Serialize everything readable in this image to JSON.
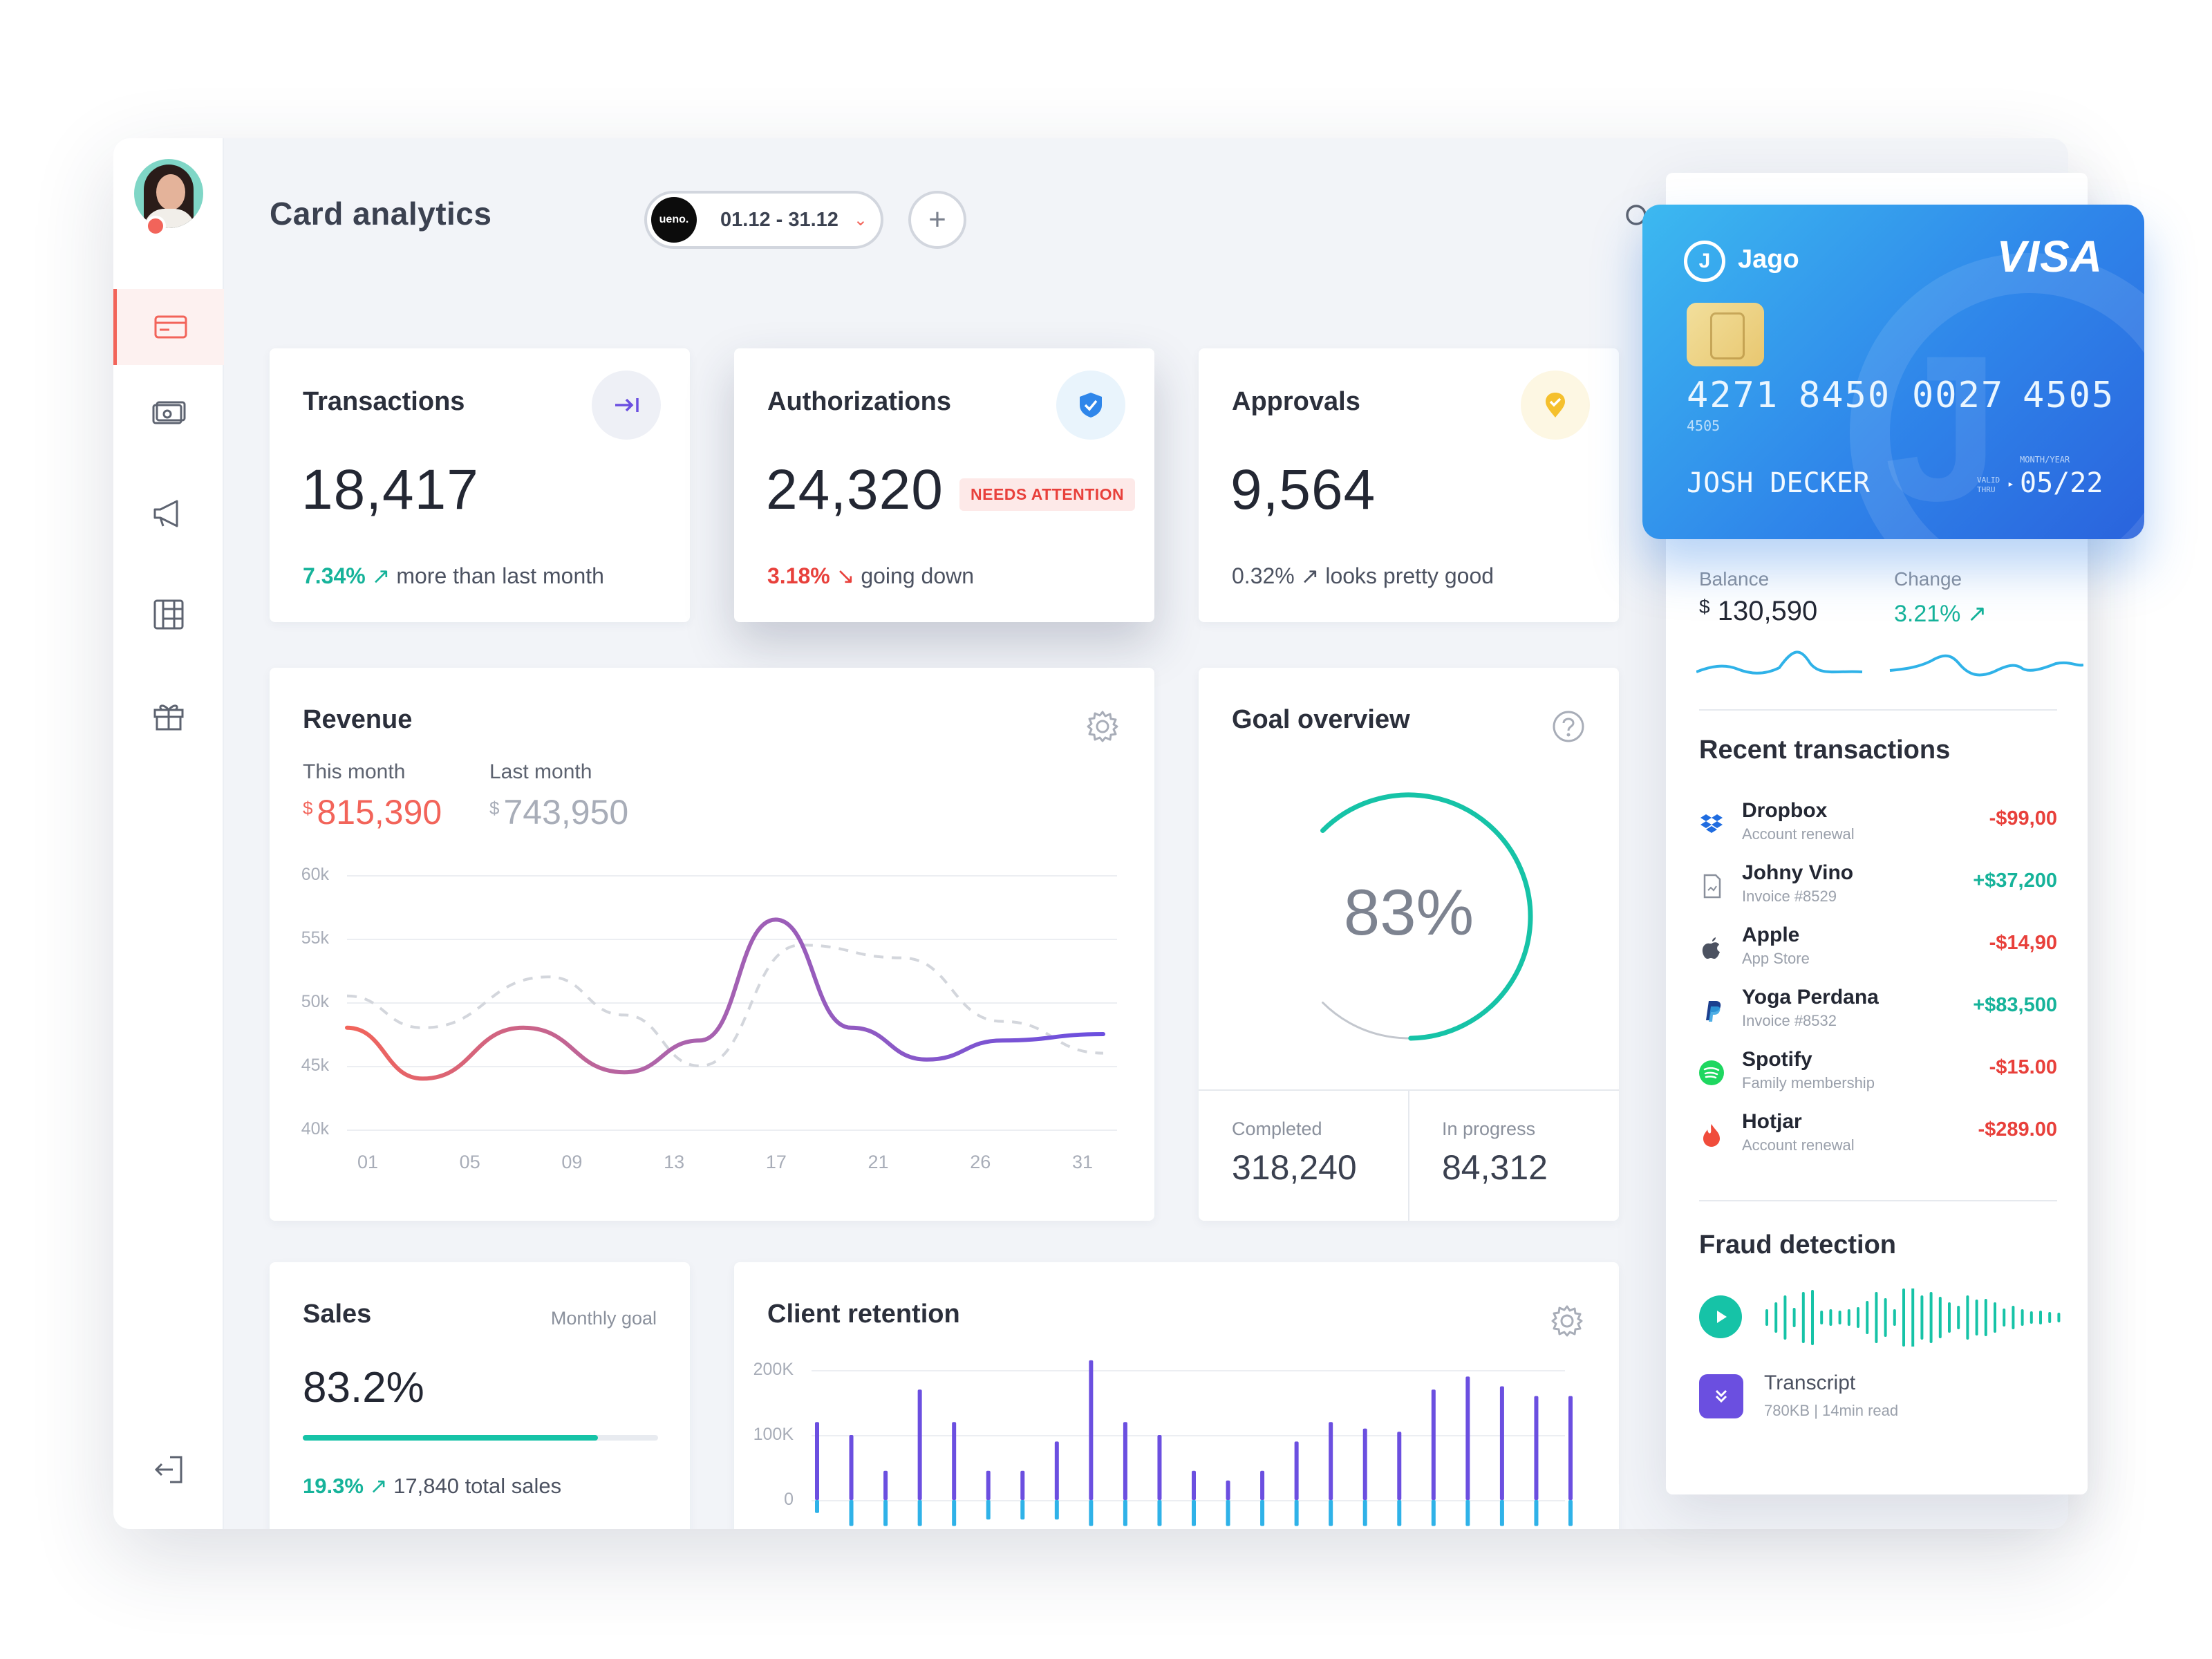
{
  "header": {
    "title": "Card analytics",
    "brand_logo_text": "ueno.",
    "date_range": "01.12 - 31.12",
    "add_label": "+"
  },
  "sidebar": {
    "items": [
      {
        "name": "cards",
        "icon": "credit-card-icon",
        "active": true
      },
      {
        "name": "payments",
        "icon": "cash-icon",
        "active": false
      },
      {
        "name": "campaigns",
        "icon": "megaphone-icon",
        "active": false
      },
      {
        "name": "reports",
        "icon": "table-icon",
        "active": false
      },
      {
        "name": "rewards",
        "icon": "gift-icon",
        "active": false
      }
    ],
    "logout_icon": "logout-icon"
  },
  "kpis": [
    {
      "title": "Transactions",
      "value": "18,417",
      "pct": "7.34%",
      "arrow": "↗",
      "note": "more than last month",
      "pct_color": "#16b39a",
      "icon": "arrow-to-line-icon"
    },
    {
      "title": "Authorizations",
      "value": "24,320",
      "badge": "NEEDS ATTENTION",
      "pct": "3.18%",
      "arrow": "↘",
      "note": "going down",
      "pct_color": "#e8403b",
      "icon": "shield-check-icon"
    },
    {
      "title": "Approvals",
      "value": "9,564",
      "pct": "0.32%",
      "arrow": "↗",
      "note": "looks pretty good",
      "pct_color": "#4c5261",
      "icon": "location-check-icon"
    }
  ],
  "revenue": {
    "title": "Revenue",
    "this_month_label": "This month",
    "this_month_currency": "$",
    "this_month_value": "815,390",
    "last_month_label": "Last month",
    "last_month_currency": "$",
    "last_month_value": "743,950"
  },
  "chart_data": [
    {
      "type": "line",
      "y_ticks": [
        "60k",
        "55k",
        "50k",
        "45k",
        "40k"
      ],
      "ylim": [
        40000,
        60000
      ],
      "x_ticks": [
        "01",
        "05",
        "09",
        "13",
        "17",
        "21",
        "26",
        "31"
      ],
      "series": [
        {
          "values": [
            [
              1,
              48000
            ],
            [
              4,
              44000
            ],
            [
              8,
              48000
            ],
            [
              12,
              44500
            ],
            [
              15,
              47000
            ],
            [
              18,
              56500
            ],
            [
              21,
              48000
            ],
            [
              24,
              45500
            ],
            [
              27,
              47000
            ],
            [
              31,
              47500
            ]
          ]
        },
        {
          "values": [
            [
              1,
              50500
            ],
            [
              4,
              48000
            ],
            [
              9,
              52000
            ],
            [
              12,
              49000
            ],
            [
              15,
              45000
            ],
            [
              19,
              54500
            ],
            [
              23,
              53500
            ],
            [
              27,
              48500
            ],
            [
              31,
              46000
            ]
          ]
        }
      ]
    },
    {
      "type": "bar",
      "title": "Client retention",
      "y_ticks": [
        "200K",
        "100K",
        "0"
      ],
      "ylim": [
        0,
        200000
      ],
      "series": [
        {
          "values": [
            120000,
            100000,
            45000,
            170000,
            120000,
            45000,
            45000,
            90000,
            215000,
            120000,
            100000,
            45000,
            30000,
            45000,
            90000,
            120000,
            110000,
            105000,
            170000,
            190000,
            175000,
            160000,
            160000
          ]
        },
        {
          "values": [
            -20000,
            -40000,
            -40000,
            -40000,
            -40000,
            -30000,
            -30000,
            -30000,
            -40000,
            -40000,
            -40000,
            -40000,
            -40000,
            -40000,
            -40000,
            -40000,
            -40000,
            -40000,
            -40000,
            -40000,
            -40000,
            -40000,
            -40000
          ]
        }
      ]
    }
  ],
  "goal": {
    "title": "Goal overview",
    "percent": "83%",
    "percent_value": 83,
    "completed_label": "Completed",
    "completed_value": "318,240",
    "in_progress_label": "In progress",
    "in_progress_value": "84,312"
  },
  "sales": {
    "title": "Sales",
    "goal_label": "Monthly goal",
    "value": "83.2%",
    "progress": 0.83,
    "pct": "19.3%",
    "arrow": "↗",
    "note": "17,840 total sales"
  },
  "retention": {
    "title": "Client retention"
  },
  "card": {
    "bank": "Jago",
    "network": "VISA",
    "number_groups": [
      "4271",
      "8450",
      "0027",
      "4505"
    ],
    "number_small": "4505",
    "holder": "JOSH DECKER",
    "valid_label_top": "MONTH/YEAR",
    "valid_label_1": "VALID",
    "valid_label_2": "THRU",
    "expiry": "05/22"
  },
  "account": {
    "balance_label": "Balance",
    "balance_currency": "$",
    "balance_value": "130,590",
    "change_label": "Change",
    "change_value": "3.21%",
    "change_arrow": "↗"
  },
  "recent": {
    "title": "Recent transactions",
    "items": [
      {
        "name": "Dropbox",
        "sub": "Account renewal",
        "amount": "-$99,00",
        "icon": "dropbox-icon",
        "color": "#e8403b"
      },
      {
        "name": "Johny Vino",
        "sub": "Invoice #8529",
        "amount": "+$37,200",
        "icon": "invoice-icon",
        "color": "#16b39a"
      },
      {
        "name": "Apple",
        "sub": "App Store",
        "amount": "-$14,90",
        "icon": "apple-icon",
        "color": "#e8403b"
      },
      {
        "name": "Yoga Perdana",
        "sub": "Invoice #8532",
        "amount": "+$83,500",
        "icon": "paypal-icon",
        "color": "#16b39a"
      },
      {
        "name": "Spotify",
        "sub": "Family membership",
        "amount": "-$15.00",
        "icon": "spotify-icon",
        "color": "#e8403b"
      },
      {
        "name": "Hotjar",
        "sub": "Account renewal",
        "amount": "-$289.00",
        "icon": "hotjar-icon",
        "color": "#e8403b"
      }
    ]
  },
  "fraud": {
    "title": "Fraud detection",
    "transcript_label": "Transcript",
    "transcript_size": "780KB",
    "transcript_sep": "|",
    "transcript_read": "14min read"
  }
}
